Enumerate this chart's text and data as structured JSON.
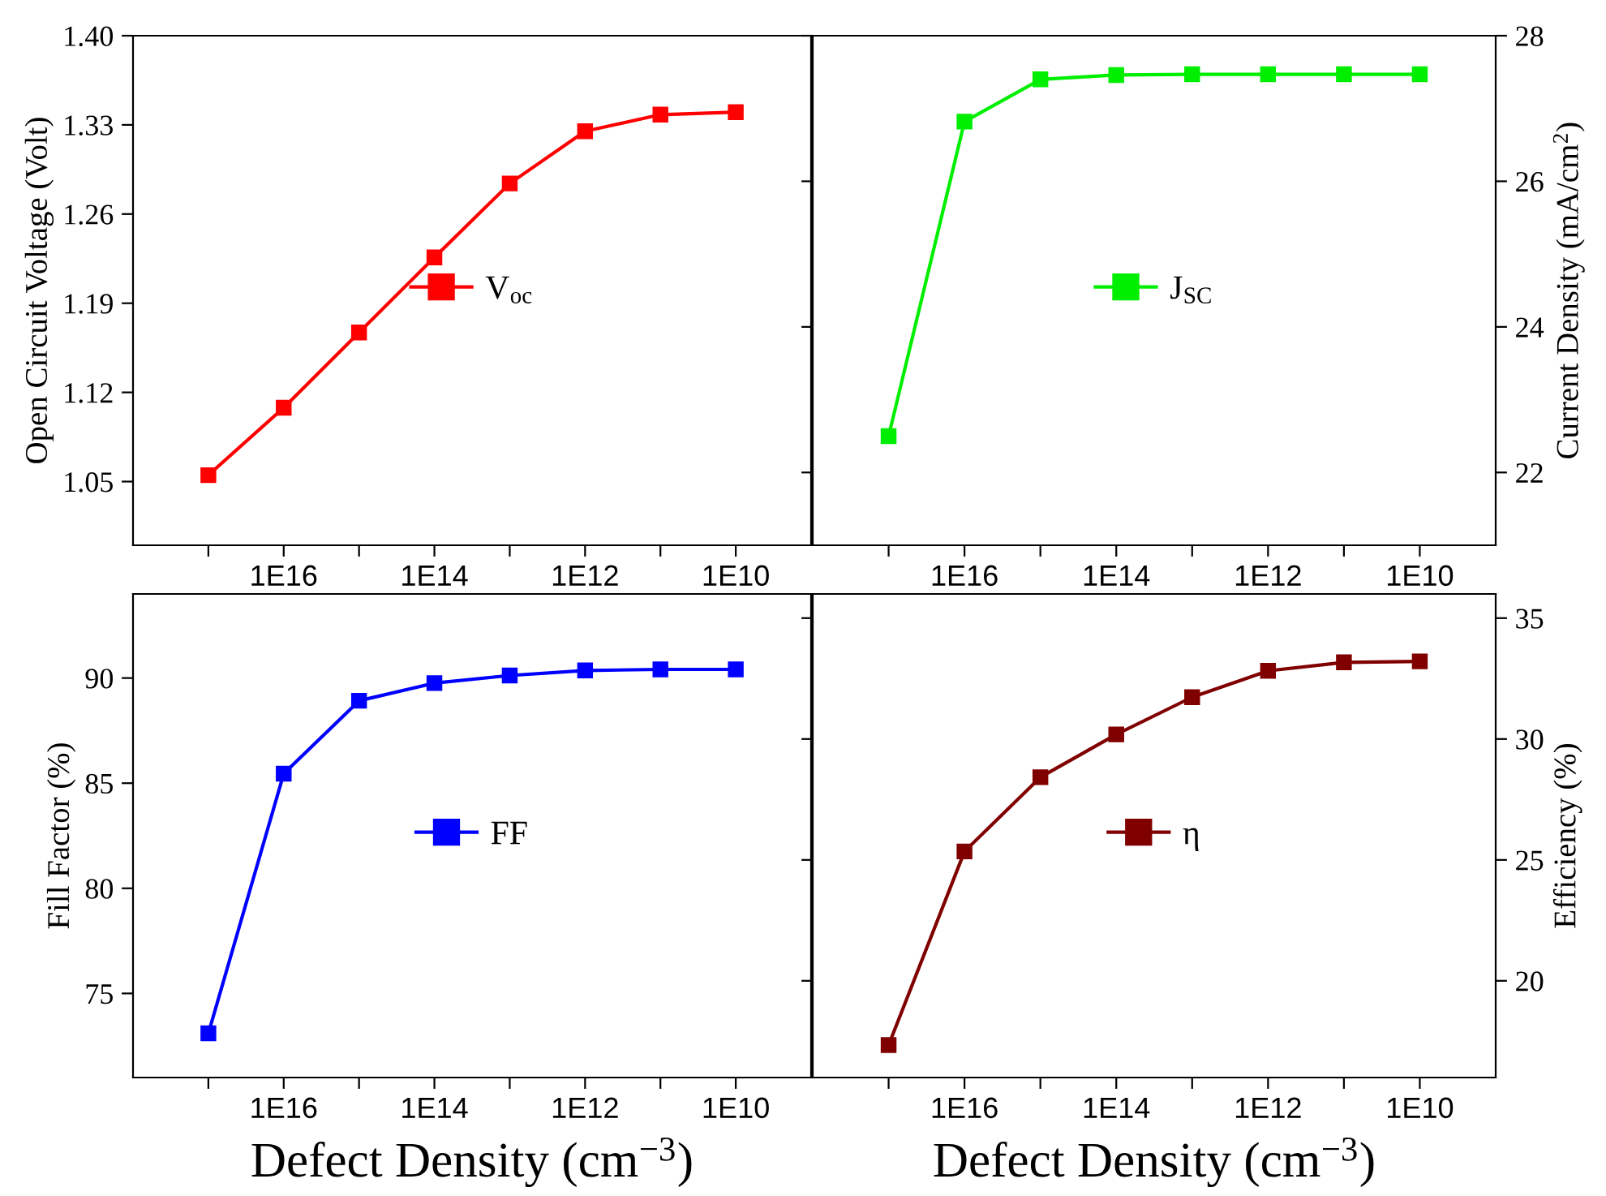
{
  "chart_data": [
    {
      "type": "line",
      "xlabel": null,
      "ylabel": "Open Circuit Voltage (Volt)",
      "log": "x",
      "x": [
        1e+17,
        1e+16,
        1000000000000000.0,
        100000000000000.0,
        10000000000000.0,
        1000000000000.0,
        100000000000.0,
        10000000000.0
      ],
      "xlim": [
        1e+18,
        1000000000.0
      ],
      "xticks": [
        {
          "value": 1e+17,
          "label": null
        },
        {
          "value": 1e+16,
          "label": "1E16"
        },
        {
          "value": 1000000000000000.0,
          "label": null
        },
        {
          "value": 100000000000000.0,
          "label": "1E14"
        },
        {
          "value": 10000000000000.0,
          "label": null
        },
        {
          "value": 1000000000000.0,
          "label": "1E12"
        },
        {
          "value": 100000000000.0,
          "label": null
        },
        {
          "value": 10000000000.0,
          "label": "1E10"
        }
      ],
      "ylim": [
        1.0,
        1.4
      ],
      "yticks": [
        {
          "value": 1.05,
          "label": "1.05"
        },
        {
          "value": 1.12,
          "label": "1.12"
        },
        {
          "value": 1.19,
          "label": "1.19"
        },
        {
          "value": 1.26,
          "label": "1.26"
        },
        {
          "value": 1.33,
          "label": "1.33"
        },
        {
          "value": 1.4,
          "label": "1.40"
        }
      ],
      "marker": "square",
      "legend": "center",
      "grid": false,
      "series": [
        {
          "name": "V$_{oc}$",
          "color": "#ff0000",
          "values": [
            1.055,
            1.108,
            1.167,
            1.226,
            1.284,
            1.325,
            1.338,
            1.34
          ]
        }
      ]
    },
    {
      "type": "line",
      "y2label": "Current Density (mA/cm$^{2}$)",
      "log": "x",
      "x": [
        1e+17,
        1e+16,
        1000000000000000.0,
        100000000000000.0,
        10000000000000.0,
        1000000000000.0,
        100000000000.0,
        10000000000.0
      ],
      "xlim": [
        1e+18,
        1000000000.0
      ],
      "xticks": [
        {
          "value": 1e+17,
          "label": null
        },
        {
          "value": 1e+16,
          "label": "1E16"
        },
        {
          "value": 1000000000000000.0,
          "label": null
        },
        {
          "value": 100000000000000.0,
          "label": "1E14"
        },
        {
          "value": 10000000000000.0,
          "label": null
        },
        {
          "value": 1000000000000.0,
          "label": "1E12"
        },
        {
          "value": 100000000000.0,
          "label": null
        },
        {
          "value": 10000000000.0,
          "label": "1E10"
        }
      ],
      "y2lim": [
        21,
        28
      ],
      "y2ticks": [
        22,
        24,
        26,
        28
      ],
      "marker": "square",
      "legend": "center",
      "grid": false,
      "series": [
        {
          "name": "J$_{SC}$",
          "color": "#00ee00",
          "axis": "y2",
          "values": [
            22.5,
            26.82,
            27.4,
            27.46,
            27.47,
            27.47,
            27.47,
            27.47
          ]
        }
      ]
    },
    {
      "type": "line",
      "xlabel": "Defect Density (cm$^{−3}$)",
      "ylabel": "Fill Factor (%)",
      "log": "x",
      "x": [
        1e+17,
        1e+16,
        1000000000000000.0,
        100000000000000.0,
        10000000000000.0,
        1000000000000.0,
        100000000000.0,
        10000000000.0
      ],
      "xlim": [
        1e+18,
        1000000000.0
      ],
      "xticks": [
        {
          "value": 1e+17,
          "label": null
        },
        {
          "value": 1e+16,
          "label": "1E16"
        },
        {
          "value": 1000000000000000.0,
          "label": null
        },
        {
          "value": 100000000000000.0,
          "label": "1E14"
        },
        {
          "value": 10000000000000.0,
          "label": null
        },
        {
          "value": 1000000000000.0,
          "label": "1E12"
        },
        {
          "value": 100000000000.0,
          "label": null
        },
        {
          "value": 10000000000.0,
          "label": "1E10"
        }
      ],
      "ylim": [
        71,
        94
      ],
      "yticks": [
        75,
        80,
        85,
        90
      ],
      "marker": "square",
      "legend": "center",
      "grid": false,
      "series": [
        {
          "name": "FF",
          "color": "#0000ff",
          "values": [
            73.1,
            85.45,
            88.92,
            89.76,
            90.12,
            90.36,
            90.41,
            90.41
          ]
        }
      ]
    },
    {
      "type": "line",
      "xlabel": "Defect Density (cm$^{−3}$)",
      "y2label": "Efficiency (%)",
      "log": "x",
      "x": [
        1e+17,
        1e+16,
        1000000000000000.0,
        100000000000000.0,
        10000000000000.0,
        1000000000000.0,
        100000000000.0,
        10000000000.0
      ],
      "xlim": [
        1e+18,
        1000000000.0
      ],
      "xticks": [
        {
          "value": 1e+17,
          "label": null
        },
        {
          "value": 1e+16,
          "label": "1E16"
        },
        {
          "value": 1000000000000000.0,
          "label": null
        },
        {
          "value": 100000000000000.0,
          "label": "1E14"
        },
        {
          "value": 10000000000000.0,
          "label": null
        },
        {
          "value": 1000000000000.0,
          "label": "1E12"
        },
        {
          "value": 100000000000.0,
          "label": null
        },
        {
          "value": 10000000000.0,
          "label": "1E10"
        }
      ],
      "y2lim": [
        16,
        36
      ],
      "y2ticks": [
        20,
        25,
        30,
        35
      ],
      "marker": "square",
      "legend": "center",
      "grid": false,
      "series": [
        {
          "name": "η",
          "color": "#800000",
          "axis": "y2",
          "values": [
            17.34,
            25.35,
            28.42,
            30.19,
            31.73,
            32.82,
            33.17,
            33.21
          ]
        }
      ]
    }
  ]
}
